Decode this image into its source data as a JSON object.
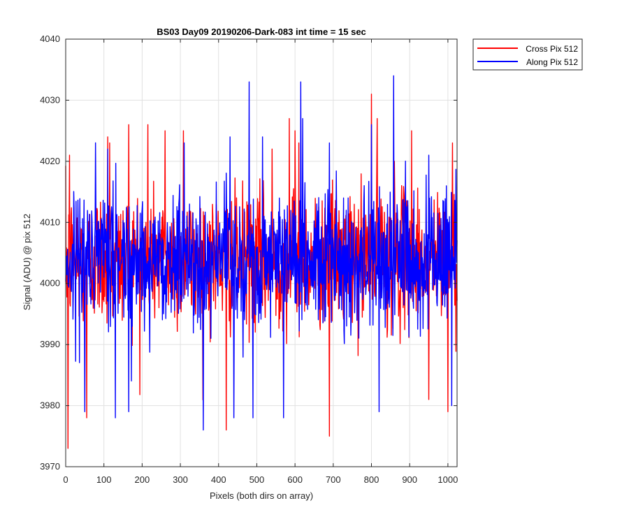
{
  "chart_data": {
    "type": "line",
    "title": "BS03 Day09 20190206-Dark-083 int time = 15 sec",
    "xlabel": "Pixels (both dirs on array)",
    "ylabel": "Signal (ADU) @ pix 512",
    "xlim": [
      0,
      1024
    ],
    "ylim": [
      3970,
      4040
    ],
    "xticks": [
      0,
      100,
      200,
      300,
      400,
      500,
      600,
      700,
      800,
      900,
      1000
    ],
    "yticks": [
      3970,
      3980,
      3990,
      4000,
      4010,
      4020,
      4030,
      4040
    ],
    "grid": true,
    "legend_position": "outside-top-right",
    "series": [
      {
        "name": "Cross Pix 512",
        "color": "#ff0000",
        "stats": {
          "mean": 4004,
          "sd": 5.5,
          "min": 3973,
          "max": 4031
        },
        "peaks": [
          [
            6,
            3973
          ],
          [
            10,
            4021
          ],
          [
            55,
            3978
          ],
          [
            110,
            4024
          ],
          [
            115,
            4023
          ],
          [
            165,
            4026
          ],
          [
            215,
            4026
          ],
          [
            260,
            4025
          ],
          [
            308,
            4025
          ],
          [
            420,
            3976
          ],
          [
            540,
            4022
          ],
          [
            585,
            4027
          ],
          [
            600,
            4025
          ],
          [
            610,
            4023
          ],
          [
            690,
            3975
          ],
          [
            800,
            4031
          ],
          [
            815,
            4027
          ],
          [
            860,
            4020
          ],
          [
            905,
            4025
          ],
          [
            950,
            3981
          ],
          [
            1000,
            3979
          ],
          [
            1012,
            4023
          ]
        ]
      },
      {
        "name": "Along Pix 512",
        "color": "#0000ff",
        "stats": {
          "mean": 4004,
          "sd": 5.5,
          "min": 3976,
          "max": 4034
        },
        "peaks": [
          [
            50,
            3979
          ],
          [
            110,
            4022
          ],
          [
            130,
            3978
          ],
          [
            165,
            3979
          ],
          [
            310,
            4023
          ],
          [
            360,
            3976
          ],
          [
            430,
            4024
          ],
          [
            440,
            3978
          ],
          [
            480,
            4033
          ],
          [
            490,
            3978
          ],
          [
            515,
            4024
          ],
          [
            570,
            3978
          ],
          [
            615,
            4033
          ],
          [
            620,
            4027
          ],
          [
            690,
            4023
          ],
          [
            800,
            4026
          ],
          [
            820,
            3979
          ],
          [
            858,
            4034
          ],
          [
            950,
            4021
          ],
          [
            1010,
            3980
          ]
        ]
      }
    ]
  },
  "colors": {
    "axis": "#262626",
    "grid": "#e1e1e1",
    "text": "#262626"
  }
}
